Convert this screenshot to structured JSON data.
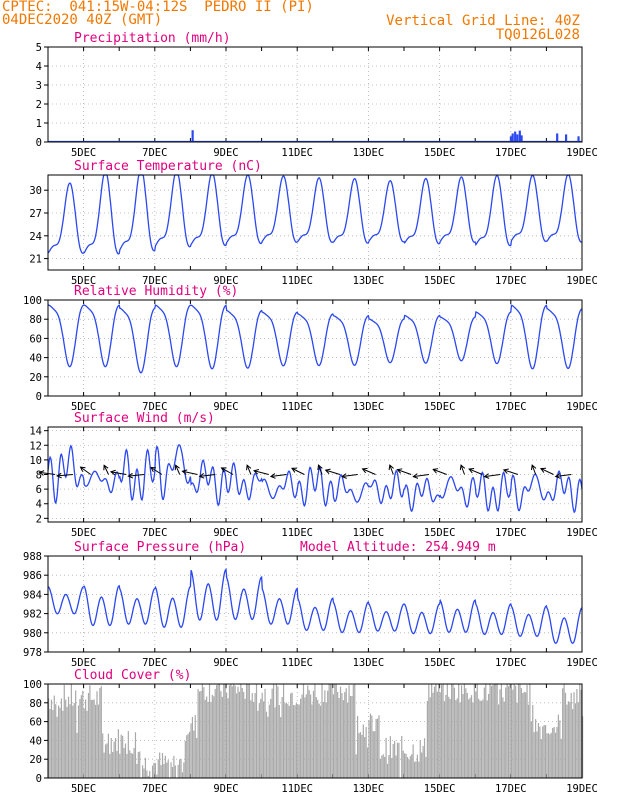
{
  "header": {
    "line1": "CPTEC:  041:15W-04:12S  PEDRO II (PI)",
    "line2": "04DEC2020 40Z (GMT)",
    "right1": "Vertical Grid Line: 40Z",
    "right2": "TQ0126L028"
  },
  "colors": {
    "series": "#2b48f0",
    "title": "#e0007f",
    "header": "#f07800",
    "cloud": "#a9a9a9",
    "grid": "#b0b0b0"
  },
  "chart_data": [
    {
      "type": "bar",
      "title": "Precipitation (mm/h)",
      "ylim": [
        0,
        5
      ],
      "yticks": [
        0,
        1,
        2,
        3,
        4,
        5
      ],
      "x_ticks": [
        "5DEC",
        "7DEC",
        "9DEC",
        "11DEC",
        "13DEC",
        "15DEC",
        "17DEC",
        "19DEC"
      ],
      "bars": [
        {
          "x": 8.06,
          "y": 0.62
        },
        {
          "x": 17.0,
          "y": 0.3
        },
        {
          "x": 17.05,
          "y": 0.45
        },
        {
          "x": 17.12,
          "y": 0.55
        },
        {
          "x": 17.18,
          "y": 0.4
        },
        {
          "x": 17.25,
          "y": 0.6
        },
        {
          "x": 17.3,
          "y": 0.35
        },
        {
          "x": 18.3,
          "y": 0.45
        },
        {
          "x": 18.55,
          "y": 0.4
        },
        {
          "x": 18.9,
          "y": 0.3
        }
      ]
    },
    {
      "type": "line",
      "title": "Surface Temperature (nC)",
      "ylim": [
        19.5,
        32
      ],
      "yticks": [
        21,
        24,
        27,
        30
      ],
      "x_ticks": [
        "5DEC",
        "7DEC",
        "9DEC",
        "11DEC",
        "13DEC",
        "15DEC",
        "17DEC",
        "19DEC"
      ],
      "daily_max": [
        29.5,
        30.8,
        31.2,
        31.0,
        30.8,
        30.6,
        30.5,
        30.3,
        30.2,
        30.0,
        30.2,
        30.4,
        30.5,
        30.6,
        30.7,
        30.4
      ],
      "daily_min": [
        21.0,
        20.8,
        21.2,
        21.8,
        22.0,
        22.3,
        22.5,
        22.5,
        22.4,
        22.6,
        22.3,
        22.5,
        22.0,
        22.6,
        22.5,
        22.8
      ]
    },
    {
      "type": "line",
      "title": "Relative Humidity (%)",
      "ylim": [
        0,
        100
      ],
      "yticks": [
        0,
        20,
        40,
        60,
        80,
        100
      ],
      "x_ticks": [
        "5DEC",
        "7DEC",
        "9DEC",
        "11DEC",
        "13DEC",
        "15DEC",
        "17DEC",
        "19DEC"
      ],
      "daily_max": [
        100,
        100,
        97,
        100,
        100,
        94,
        92,
        90,
        88,
        84,
        88,
        86,
        92,
        100,
        96,
        95
      ],
      "daily_min": [
        38,
        38,
        32,
        38,
        36,
        36,
        38,
        38,
        38,
        40,
        40,
        42,
        40,
        36,
        36,
        40
      ]
    },
    {
      "type": "line",
      "title": "Surface Wind (m/s)",
      "ylim": [
        1.5,
        14.5
      ],
      "yticks": [
        2,
        4,
        6,
        8,
        10,
        12,
        14
      ],
      "x_ticks": [
        "5DEC",
        "7DEC",
        "9DEC",
        "11DEC",
        "13DEC",
        "15DEC",
        "17DEC",
        "19DEC"
      ],
      "daily_max": [
        12,
        9,
        11,
        13.5,
        10,
        9,
        8.5,
        9,
        8,
        8,
        7.5,
        8.5,
        8,
        9,
        8.5,
        7.5
      ],
      "daily_min": [
        5,
        5.5,
        4.5,
        4.5,
        4.5,
        4.5,
        4,
        4,
        3.5,
        4,
        3.5,
        3.5,
        3,
        3,
        3.5,
        4
      ]
    },
    {
      "type": "line",
      "title": "Surface Pressure (hPa)",
      "annotation": "Model Altitude: 254.949 m",
      "ylim": [
        978,
        988
      ],
      "yticks": [
        978,
        980,
        982,
        984,
        986,
        988
      ],
      "x_ticks": [
        "5DEC",
        "7DEC",
        "9DEC",
        "11DEC",
        "13DEC",
        "15DEC",
        "17DEC",
        "19DEC"
      ],
      "daily_max": [
        984.8,
        984.9,
        984.6,
        984.8,
        986.6,
        985.8,
        984.6,
        983.6,
        983.2,
        983.0,
        983.0,
        983.4,
        983.0,
        982.8,
        982.6,
        982.2
      ],
      "daily_min": [
        981.6,
        980.2,
        980.4,
        980.0,
        980.6,
        980.8,
        980.4,
        979.8,
        979.6,
        979.8,
        979.5,
        979.6,
        979.4,
        979.2,
        978.4,
        978.6
      ]
    },
    {
      "type": "bar",
      "title": "Cloud Cover (%)",
      "ylim": [
        0,
        100
      ],
      "yticks": [
        0,
        20,
        40,
        60,
        80,
        100
      ],
      "x_ticks": [
        "5DEC",
        "7DEC",
        "9DEC",
        "11DEC",
        "13DEC",
        "15DEC",
        "17DEC",
        "19DEC"
      ],
      "segments": [
        {
          "from": 4.0,
          "to": 5.5,
          "level": 85
        },
        {
          "from": 5.5,
          "to": 6.6,
          "level": 40
        },
        {
          "from": 6.6,
          "to": 7.8,
          "level": 15
        },
        {
          "from": 7.8,
          "to": 8.2,
          "level": 55
        },
        {
          "from": 8.2,
          "to": 9.8,
          "level": 95
        },
        {
          "from": 9.8,
          "to": 11.4,
          "level": 90
        },
        {
          "from": 11.4,
          "to": 12.6,
          "level": 95
        },
        {
          "from": 12.6,
          "to": 13.3,
          "level": 55
        },
        {
          "from": 13.3,
          "to": 14.6,
          "level": 30
        },
        {
          "from": 14.6,
          "to": 16.2,
          "level": 95
        },
        {
          "from": 16.2,
          "to": 17.6,
          "level": 92
        },
        {
          "from": 17.6,
          "to": 18.4,
          "level": 55
        },
        {
          "from": 18.4,
          "to": 19.0,
          "level": 90
        }
      ]
    }
  ]
}
